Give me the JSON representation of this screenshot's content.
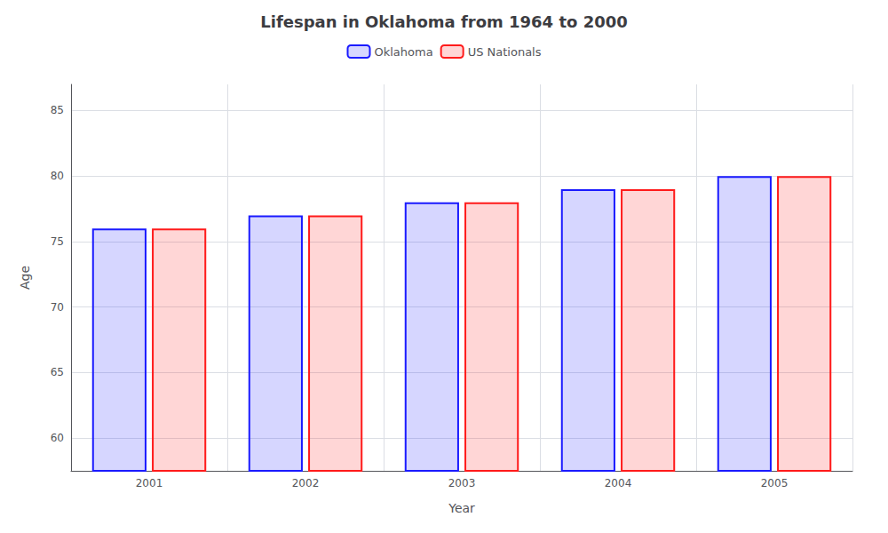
{
  "chart_data": {
    "type": "bar",
    "title": "Lifespan in Oklahoma from 1964 to 2000",
    "xlabel": "Year",
    "ylabel": "Age",
    "categories": [
      "2001",
      "2002",
      "2003",
      "2004",
      "2005"
    ],
    "series": [
      {
        "name": "Oklahoma",
        "color": "#1a1aff",
        "values": [
          76,
          77,
          78,
          79,
          80
        ]
      },
      {
        "name": "US Nationals",
        "color": "#ff1a1a",
        "values": [
          76,
          77,
          78,
          79,
          80
        ]
      }
    ],
    "ylim": [
      57.5,
      87
    ],
    "yticks": [
      60,
      65,
      70,
      75,
      80,
      85
    ],
    "grid": true,
    "legend": "top"
  }
}
